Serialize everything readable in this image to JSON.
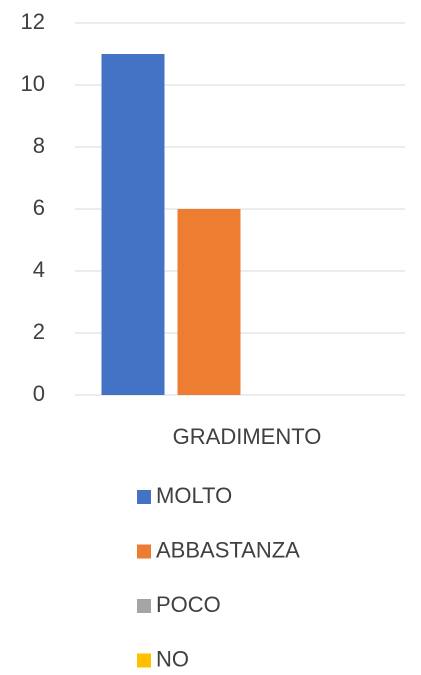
{
  "chart_data": {
    "type": "bar",
    "categories": [
      "GRADIMENTO"
    ],
    "series": [
      {
        "name": "MOLTO",
        "color": "#4472c4",
        "values": [
          11
        ]
      },
      {
        "name": "ABBASTANZA",
        "color": "#ed7d31",
        "values": [
          6
        ]
      },
      {
        "name": "POCO",
        "color": "#a5a5a5",
        "values": [
          0
        ]
      },
      {
        "name": "NO",
        "color": "#ffc000",
        "values": [
          0
        ]
      }
    ],
    "ylim": [
      0,
      12
    ],
    "yticks": [
      0,
      2,
      4,
      6,
      8,
      10,
      12
    ],
    "grid": true,
    "legend": "bottom"
  }
}
